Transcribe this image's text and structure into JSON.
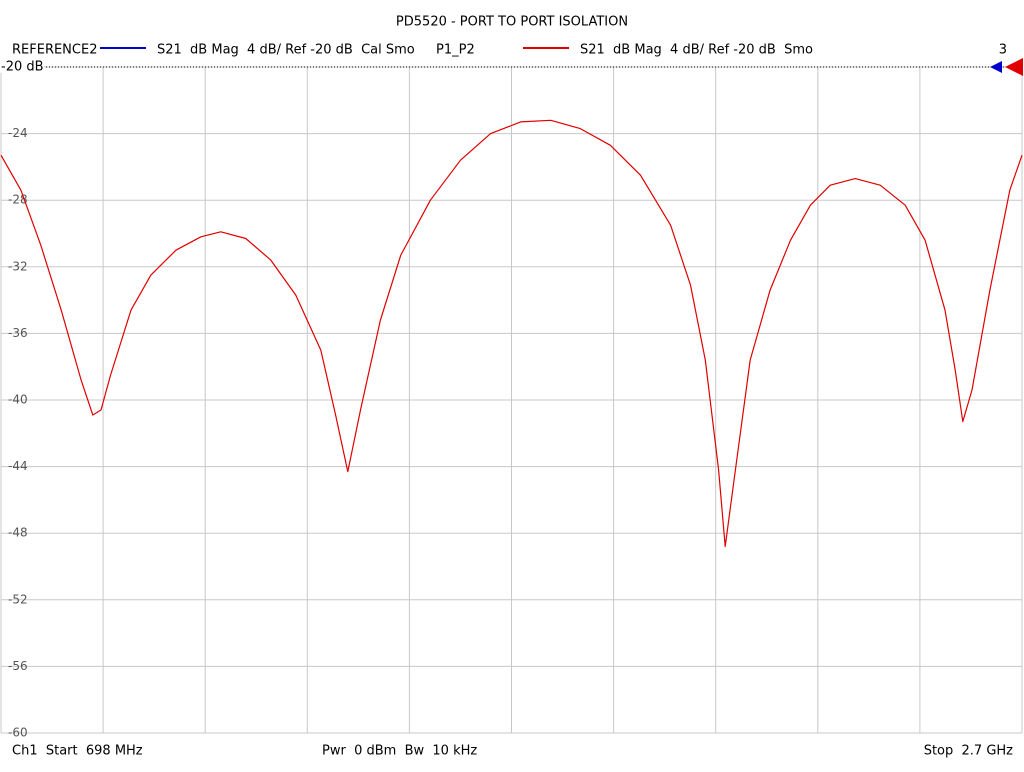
{
  "chart_data": {
    "type": "line",
    "title": "PD5520 - PORT TO PORT ISOLATION",
    "reference_trace": {
      "name": "REFERENCE2",
      "color": "#0000cc",
      "description": "S21  dB Mag  4 dB/ Ref -20 dB  Cal Smo"
    },
    "corner_label": "3",
    "ref_level": {
      "value": -20,
      "label": "-20 dB"
    },
    "x": [
      698,
      737,
      776,
      816,
      855,
      878,
      894,
      913,
      953,
      992,
      1041,
      1090,
      1129,
      1178,
      1227,
      1276,
      1325,
      1354,
      1378,
      1403,
      1442,
      1482,
      1540,
      1599,
      1658,
      1717,
      1776,
      1834,
      1893,
      1952,
      2011,
      2050,
      2079,
      2105,
      2118,
      2138,
      2167,
      2206,
      2246,
      2285,
      2324,
      2373,
      2422,
      2471,
      2510,
      2549,
      2569,
      2584,
      2602,
      2637,
      2676,
      2700
    ],
    "series": [
      {
        "name": "P1_P2",
        "color": "#e00000",
        "description": "S21  dB Mag  4 dB/ Ref -20 dB  Smo",
        "values": [
          -25.3,
          -27.4,
          -30.7,
          -34.6,
          -38.8,
          -40.9,
          -40.6,
          -38.5,
          -34.6,
          -32.5,
          -31.0,
          -30.2,
          -29.9,
          -30.3,
          -31.6,
          -33.7,
          -37.0,
          -40.9,
          -44.3,
          -40.6,
          -35.2,
          -31.3,
          -28.0,
          -25.6,
          -24.0,
          -23.3,
          -23.2,
          -23.7,
          -24.7,
          -26.5,
          -29.5,
          -33.1,
          -37.6,
          -44.2,
          -48.8,
          -44.2,
          -37.6,
          -33.4,
          -30.4,
          -28.3,
          -27.1,
          -26.7,
          -27.1,
          -28.3,
          -30.4,
          -34.6,
          -38.2,
          -41.3,
          -39.4,
          -33.4,
          -27.4,
          -25.3
        ]
      }
    ],
    "xlim": [
      698,
      2700
    ],
    "x_divisions": 10,
    "ylim": [
      -60,
      -20
    ],
    "yticks": [
      -20,
      -24,
      -28,
      -32,
      -36,
      -40,
      -44,
      -48,
      -52,
      -56,
      -60
    ],
    "grid": true,
    "footer": {
      "start": "Ch1  Start  698 MHz",
      "middle": "Pwr  0 dBm  Bw  10 kHz",
      "stop": "Stop  2.7 GHz"
    }
  }
}
